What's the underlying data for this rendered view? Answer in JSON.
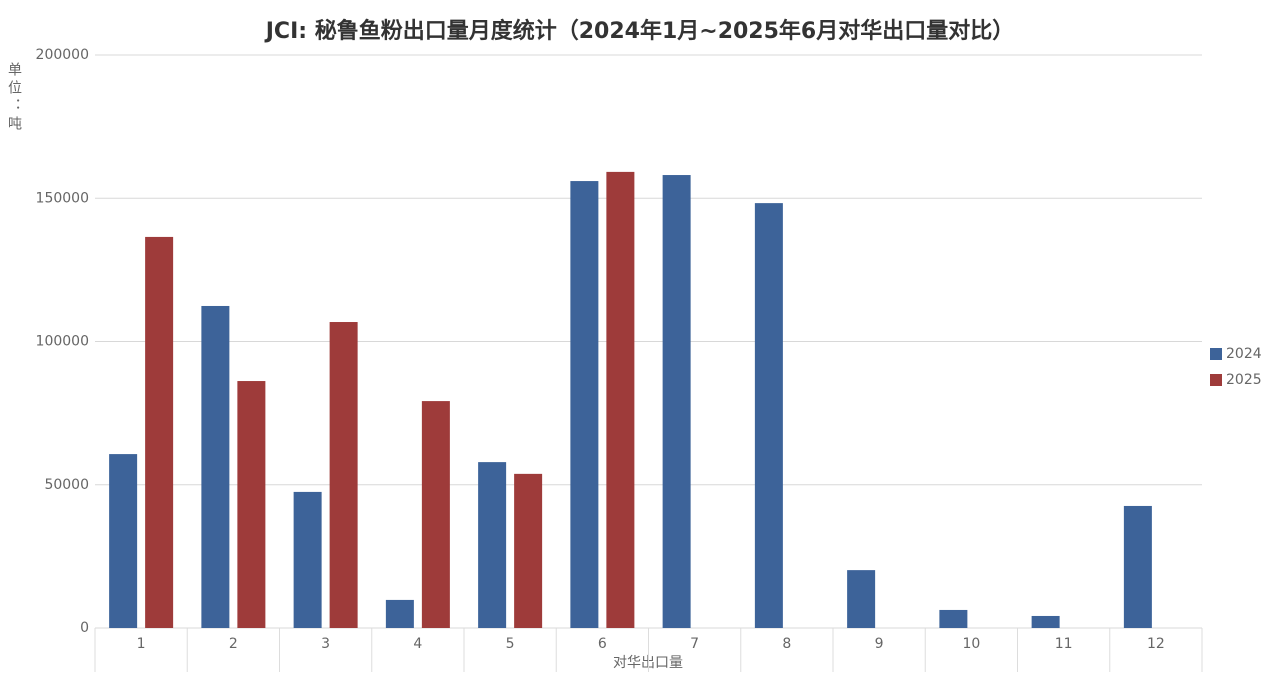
{
  "chart_data": {
    "type": "bar",
    "title": "JCI: 秘鲁鱼粉出口量月度统计（2024年1月~2025年6月对华出口量对比）",
    "y_label": "单位：吨",
    "x_label": "对华出口量",
    "categories": [
      "1",
      "2",
      "3",
      "4",
      "5",
      "6",
      "7",
      "8",
      "9",
      "10",
      "11",
      "12"
    ],
    "series": [
      {
        "name": "2024",
        "color": "#3d6399",
        "values": [
          60700,
          112400,
          47500,
          9800,
          57900,
          156000,
          158100,
          148300,
          20200,
          6300,
          4200,
          42600
        ]
      },
      {
        "name": "2025",
        "color": "#9e3b3a",
        "values": [
          136500,
          86200,
          106800,
          79200,
          53800,
          159200,
          null,
          null,
          null,
          null,
          null,
          null
        ]
      }
    ],
    "ylim": [
      0,
      200000
    ],
    "yticks": [
      0,
      50000,
      100000,
      150000,
      200000
    ],
    "grid": true,
    "legend": "right"
  }
}
